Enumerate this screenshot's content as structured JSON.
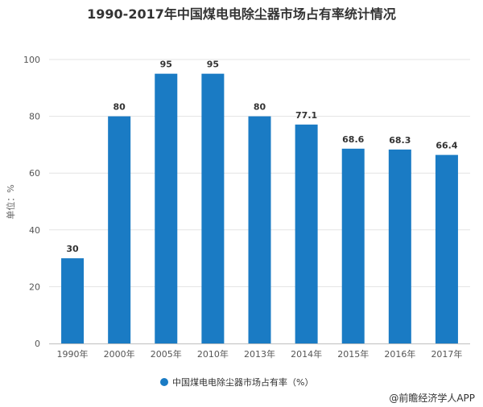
{
  "chart_data": {
    "type": "bar",
    "title": "1990-2017年中国煤电电除尘器市场占有率统计情况",
    "ylabel": "单位：%",
    "xlabel": "",
    "categories": [
      "1990年",
      "2000年",
      "2005年",
      "2010年",
      "2013年",
      "2014年",
      "2015年",
      "2016年",
      "2017年"
    ],
    "series": [
      {
        "name": "中国煤电电除尘器市场占有率（%）",
        "values": [
          30,
          80,
          95,
          95,
          80,
          77.1,
          68.6,
          68.3,
          66.4
        ]
      }
    ],
    "data_labels": [
      "30",
      "80",
      "95",
      "95",
      "80",
      "77.1",
      "68.6",
      "68.3",
      "66.4"
    ],
    "ylim": [
      0,
      100
    ],
    "yticks": [
      0,
      20,
      40,
      60,
      80,
      100
    ],
    "grid": true,
    "legend_position": "bottom",
    "bar_color": "#1a7bc4"
  },
  "source": "@前瞻经济学人APP"
}
